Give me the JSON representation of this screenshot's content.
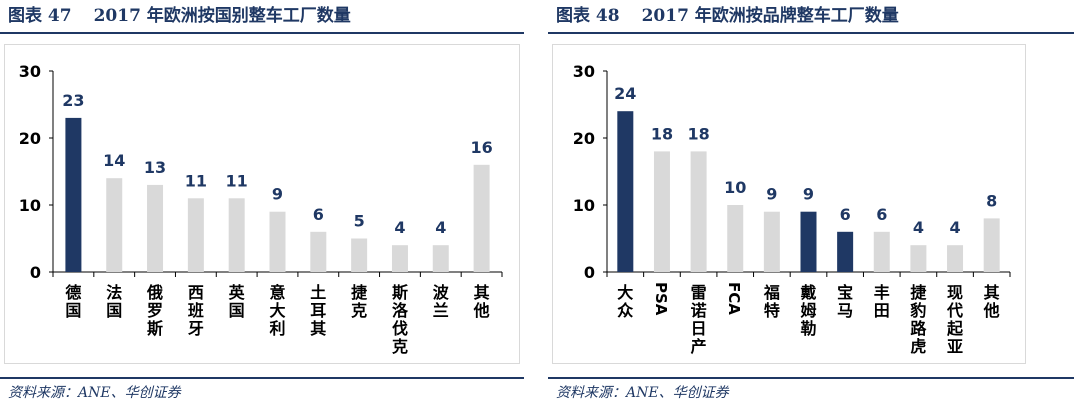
{
  "left": {
    "title_label": "图表 47",
    "title_text": "2017 年欧洲按国别整车工厂数量",
    "source": "资料来源：ANE、华创证券"
  },
  "right": {
    "title_label": "图表 48",
    "title_text": "2017 年欧洲按品牌整车工厂数量",
    "source": "资料来源：ANE、华创证券"
  },
  "chart_data": [
    {
      "type": "bar",
      "title": "2017 年欧洲按国别整车工厂数量",
      "categories": [
        "德国",
        "法国",
        "俄罗斯",
        "西班牙",
        "英国",
        "意大利",
        "土耳其",
        "捷克",
        "斯洛伐克",
        "波兰",
        "其他"
      ],
      "values": [
        23,
        14,
        13,
        11,
        11,
        9,
        6,
        5,
        4,
        4,
        16
      ],
      "highlight": [
        true,
        false,
        false,
        false,
        false,
        false,
        false,
        false,
        false,
        false,
        false
      ],
      "yticks": [
        0,
        10,
        20,
        30
      ],
      "ylim": [
        0,
        30
      ],
      "grid": true,
      "colors": {
        "highlight": "#1f3864",
        "normal": "#d9d9d9",
        "label": "#1f3864"
      }
    },
    {
      "type": "bar",
      "title": "2017 年欧洲按品牌整车工厂数量",
      "categories": [
        "大众",
        "PSA",
        "雷诺日产",
        "FCA",
        "福特",
        "戴姆勒",
        "宝马",
        "丰田",
        "捷豹路虎",
        "现代起亚",
        "其他"
      ],
      "values": [
        24,
        18,
        18,
        10,
        9,
        9,
        6,
        6,
        4,
        4,
        8
      ],
      "highlight": [
        true,
        false,
        false,
        false,
        false,
        true,
        true,
        false,
        false,
        false,
        false
      ],
      "yticks": [
        0,
        10,
        20,
        30
      ],
      "ylim": [
        0,
        30
      ],
      "grid": true,
      "colors": {
        "highlight": "#1f3864",
        "normal": "#d9d9d9",
        "label": "#1f3864"
      }
    }
  ]
}
